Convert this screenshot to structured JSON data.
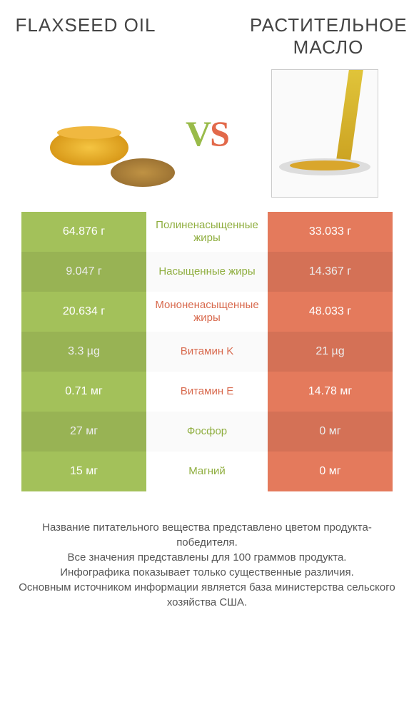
{
  "titles": {
    "left": "Flaxseed oil",
    "right": "Растительное масло"
  },
  "vs": {
    "v": "V",
    "s": "S"
  },
  "colors": {
    "left_bg": "#a3c15a",
    "right_bg": "#e47a5c",
    "left_text": "#8fae3f",
    "right_text": "#d86a4e"
  },
  "rows": [
    {
      "left": "64.876 г",
      "label": "Полиненасыщенные жиры",
      "right": "33.033 г",
      "winner": "left"
    },
    {
      "left": "9.047 г",
      "label": "Насыщенные жиры",
      "right": "14.367 г",
      "winner": "left"
    },
    {
      "left": "20.634 г",
      "label": "Мононенасыщенные жиры",
      "right": "48.033 г",
      "winner": "right"
    },
    {
      "left": "3.3 µg",
      "label": "Витамин K",
      "right": "21 µg",
      "winner": "right"
    },
    {
      "left": "0.71 мг",
      "label": "Витамин E",
      "right": "14.78 мг",
      "winner": "right"
    },
    {
      "left": "27 мг",
      "label": "Фосфор",
      "right": "0 мг",
      "winner": "left"
    },
    {
      "left": "15 мг",
      "label": "Магний",
      "right": "0 мг",
      "winner": "left"
    }
  ],
  "footer": {
    "line1": "Название питательного вещества представлено цветом продукта-победителя.",
    "line2": "Все значения представлены для 100 граммов продукта.",
    "line3": "Инфографика показывает только существенные различия.",
    "line4": "Основным источником информации является база министерства сельского хозяйства США."
  }
}
